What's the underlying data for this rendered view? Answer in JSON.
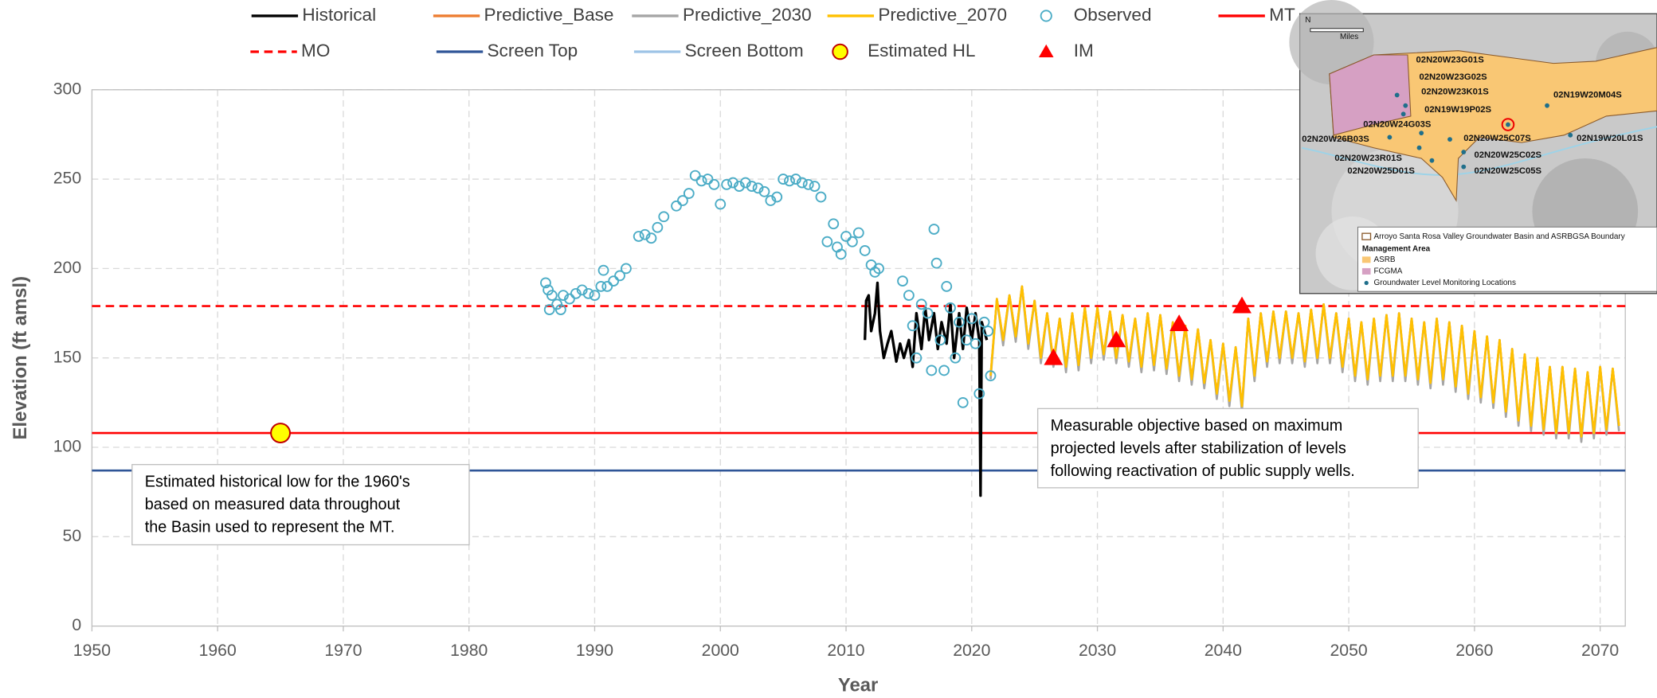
{
  "chart_data": {
    "type": "line",
    "x_label": "Year",
    "y_label": "Elevation (ft amsl)",
    "xlim": [
      1950,
      2072
    ],
    "ylim": [
      0,
      300
    ],
    "xticks": [
      1950,
      1960,
      1970,
      1980,
      1990,
      2000,
      2010,
      2020,
      2030,
      2040,
      2050,
      2060,
      2070
    ],
    "yticks": [
      0,
      50,
      100,
      150,
      200,
      250,
      300
    ],
    "grid": true,
    "series": [
      {
        "name": "Historical",
        "kind": "line",
        "color": "#000000",
        "x": [
          2011.5,
          2011.6,
          2011.8,
          2012,
          2012.3,
          2012.5,
          2012.7,
          2013,
          2013.3,
          2013.6,
          2014,
          2014.3,
          2014.6,
          2015,
          2015.3,
          2015.6,
          2016,
          2016.3,
          2016.6,
          2017,
          2017.3,
          2017.6,
          2018,
          2018.3,
          2018.6,
          2019,
          2019.3,
          2019.6,
          2020,
          2020.3,
          2020.6,
          2020.7,
          2020.8,
          2021,
          2021.2
        ],
        "values": [
          160,
          182,
          185,
          165,
          175,
          192,
          165,
          150,
          158,
          165,
          148,
          158,
          150,
          160,
          145,
          175,
          155,
          178,
          160,
          175,
          155,
          170,
          158,
          180,
          150,
          175,
          155,
          178,
          160,
          175,
          160,
          73,
          170,
          165,
          160
        ]
      },
      {
        "name": "Predictive_Base",
        "kind": "line",
        "color": "#ed7d31",
        "x": [
          2021.5,
          2022,
          2022.5,
          2023,
          2023.5,
          2024,
          2024.5,
          2025,
          2025.5,
          2026,
          2026.5,
          2027,
          2027.5,
          2028,
          2028.5,
          2029,
          2029.5,
          2030,
          2030.5,
          2031,
          2031.5,
          2032,
          2032.5,
          2033,
          2033.5,
          2034,
          2034.5,
          2035,
          2035.5,
          2036,
          2036.5,
          2037,
          2037.5,
          2038,
          2038.5,
          2039,
          2039.5,
          2040,
          2040.5,
          2041,
          2041.5,
          2042,
          2042.5,
          2043,
          2043.5,
          2044,
          2044.5,
          2045,
          2045.5,
          2046,
          2046.5,
          2047,
          2047.5,
          2048,
          2048.5,
          2049,
          2049.5,
          2050,
          2050.5,
          2051,
          2051.5,
          2052,
          2052.5,
          2053,
          2053.5,
          2054,
          2054.5,
          2055,
          2055.5,
          2056,
          2056.5,
          2057,
          2057.5,
          2058,
          2058.5,
          2059,
          2059.5,
          2060,
          2060.5,
          2061,
          2061.5,
          2062,
          2062.5,
          2063,
          2063.5,
          2064,
          2064.5,
          2065,
          2065.5,
          2066,
          2066.5,
          2067,
          2067.5,
          2068,
          2068.5,
          2069,
          2069.5,
          2070,
          2070.5,
          2071,
          2071.5
        ],
        "values": [
          140,
          183,
          160,
          185,
          162,
          190,
          158,
          182,
          150,
          175,
          148,
          172,
          145,
          175,
          146,
          178,
          150,
          178,
          152,
          176,
          150,
          174,
          148,
          172,
          145,
          175,
          146,
          174,
          144,
          170,
          140,
          168,
          138,
          166,
          136,
          160,
          130,
          158,
          126,
          156,
          123,
          172,
          140,
          175,
          148,
          176,
          150,
          176,
          150,
          175,
          148,
          177,
          150,
          180,
          150,
          175,
          145,
          172,
          140,
          170,
          138,
          172,
          140,
          174,
          140,
          175,
          140,
          172,
          138,
          170,
          136,
          172,
          138,
          170,
          134,
          168,
          130,
          165,
          128,
          162,
          125,
          160,
          120,
          155,
          115,
          152,
          112,
          150,
          110,
          145,
          108,
          145,
          108,
          144,
          106,
          142,
          108,
          145,
          110,
          144,
          112
        ]
      },
      {
        "name": "Predictive_2030",
        "kind": "line",
        "color": "#a5a5a5",
        "x": [
          2021.5,
          2022,
          2022.5,
          2023,
          2023.5,
          2024,
          2024.5,
          2025,
          2025.5,
          2026,
          2026.5,
          2027,
          2027.5,
          2028,
          2028.5,
          2029,
          2029.5,
          2030,
          2030.5,
          2031,
          2031.5,
          2032,
          2032.5,
          2033,
          2033.5,
          2034,
          2034.5,
          2035,
          2035.5,
          2036,
          2036.5,
          2037,
          2037.5,
          2038,
          2038.5,
          2039,
          2039.5,
          2040,
          2040.5,
          2041,
          2041.5,
          2042,
          2042.5,
          2043,
          2043.5,
          2044,
          2044.5,
          2045,
          2045.5,
          2046,
          2046.5,
          2047,
          2047.5,
          2048,
          2048.5,
          2049,
          2049.5,
          2050,
          2050.5,
          2051,
          2051.5,
          2052,
          2052.5,
          2053,
          2053.5,
          2054,
          2054.5,
          2055,
          2055.5,
          2056,
          2056.5,
          2057,
          2057.5,
          2058,
          2058.5,
          2059,
          2059.5,
          2060,
          2060.5,
          2061,
          2061.5,
          2062,
          2062.5,
          2063,
          2063.5,
          2064,
          2064.5,
          2065,
          2065.5,
          2066,
          2066.5,
          2067,
          2067.5,
          2068,
          2068.5,
          2069,
          2069.5,
          2070,
          2070.5,
          2071,
          2071.5
        ],
        "values": [
          138,
          183,
          157,
          185,
          159,
          190,
          155,
          182,
          147,
          175,
          145,
          172,
          142,
          175,
          143,
          178,
          147,
          178,
          149,
          176,
          147,
          174,
          145,
          172,
          142,
          175,
          143,
          174,
          141,
          170,
          137,
          168,
          135,
          166,
          133,
          160,
          127,
          158,
          123,
          156,
          120,
          172,
          137,
          175,
          145,
          176,
          147,
          176,
          147,
          175,
          145,
          177,
          147,
          180,
          147,
          175,
          142,
          172,
          137,
          170,
          135,
          172,
          137,
          174,
          137,
          175,
          137,
          172,
          135,
          170,
          133,
          172,
          135,
          170,
          131,
          168,
          127,
          165,
          125,
          162,
          122,
          160,
          117,
          155,
          112,
          152,
          109,
          150,
          107,
          145,
          105,
          145,
          105,
          144,
          103,
          142,
          105,
          145,
          107,
          144,
          109
        ]
      },
      {
        "name": "Predictive_2070",
        "kind": "line",
        "color": "#ffc000",
        "x": [
          2021.5,
          2022,
          2022.5,
          2023,
          2023.5,
          2024,
          2024.5,
          2025,
          2025.5,
          2026,
          2026.5,
          2027,
          2027.5,
          2028,
          2028.5,
          2029,
          2029.5,
          2030,
          2030.5,
          2031,
          2031.5,
          2032,
          2032.5,
          2033,
          2033.5,
          2034,
          2034.5,
          2035,
          2035.5,
          2036,
          2036.5,
          2037,
          2037.5,
          2038,
          2038.5,
          2039,
          2039.5,
          2040,
          2040.5,
          2041,
          2041.5,
          2042,
          2042.5,
          2043,
          2043.5,
          2044,
          2044.5,
          2045,
          2045.5,
          2046,
          2046.5,
          2047,
          2047.5,
          2048,
          2048.5,
          2049,
          2049.5,
          2050,
          2050.5,
          2051,
          2051.5,
          2052,
          2052.5,
          2053,
          2053.5,
          2054,
          2054.5,
          2055,
          2055.5,
          2056,
          2056.5,
          2057,
          2057.5,
          2058,
          2058.5,
          2059,
          2059.5,
          2060,
          2060.5,
          2061,
          2061.5,
          2062,
          2062.5,
          2063,
          2063.5,
          2064,
          2064.5,
          2065,
          2065.5,
          2066,
          2066.5,
          2067,
          2067.5,
          2068,
          2068.5,
          2069,
          2069.5,
          2070,
          2070.5,
          2071,
          2071.5
        ],
        "values": [
          140,
          183,
          160,
          185,
          162,
          190,
          158,
          182,
          150,
          175,
          148,
          172,
          145,
          175,
          146,
          178,
          150,
          178,
          152,
          176,
          150,
          174,
          148,
          172,
          145,
          175,
          146,
          174,
          144,
          170,
          140,
          168,
          138,
          166,
          136,
          160,
          130,
          158,
          126,
          156,
          123,
          172,
          140,
          175,
          148,
          176,
          150,
          176,
          150,
          175,
          148,
          177,
          150,
          180,
          150,
          175,
          145,
          172,
          140,
          170,
          138,
          172,
          140,
          174,
          140,
          175,
          140,
          172,
          138,
          170,
          136,
          172,
          138,
          170,
          134,
          168,
          130,
          165,
          128,
          162,
          125,
          160,
          120,
          155,
          115,
          152,
          112,
          150,
          110,
          145,
          108,
          145,
          108,
          144,
          106,
          142,
          108,
          145,
          110,
          144,
          112
        ]
      },
      {
        "name": "Observed",
        "kind": "marker",
        "marker": "ring",
        "color": "#4bacc6",
        "x": [
          1986.1,
          1986.3,
          1986.4,
          1986.6,
          1987,
          1987.3,
          1987.5,
          1988,
          1988.5,
          1989,
          1989.5,
          1990,
          1990.5,
          1990.7,
          1991,
          1991.5,
          1992,
          1992.5,
          1993.5,
          1994,
          1994.5,
          1995,
          1995.5,
          1996.5,
          1997,
          1997.5,
          1998,
          1998.5,
          1999,
          1999.5,
          2000,
          2000.5,
          2001,
          2001.5,
          2002,
          2002.5,
          2003,
          2003.5,
          2004,
          2004.5,
          2005,
          2005.5,
          2006,
          2006.5,
          2007,
          2007.5,
          2008,
          2008.5,
          2009,
          2009.3,
          2009.6,
          2010,
          2010.5,
          2011,
          2011.5,
          2012,
          2012.3,
          2012.6,
          2014.5,
          2015,
          2015.3,
          2015.6,
          2016,
          2016.5,
          2016.8,
          2017,
          2017.2,
          2017.5,
          2017.8,
          2018,
          2018.3,
          2018.7,
          2019,
          2019.3,
          2019.6,
          2020,
          2020.3,
          2020.6,
          2021,
          2021.3,
          2021.5
        ],
        "values": [
          192,
          188,
          177,
          185,
          180,
          177,
          185,
          183,
          186,
          188,
          186,
          185,
          190,
          199,
          190,
          193,
          196,
          200,
          218,
          219,
          217,
          223,
          229,
          235,
          238,
          242,
          252,
          249,
          250,
          247,
          236,
          247,
          248,
          246,
          248,
          246,
          245,
          243,
          238,
          240,
          250,
          249,
          250,
          248,
          247,
          246,
          240,
          215,
          225,
          212,
          208,
          218,
          215,
          220,
          210,
          202,
          198,
          200,
          193,
          185,
          168,
          150,
          180,
          175,
          143,
          222,
          203,
          160,
          143,
          190,
          178,
          150,
          170,
          125,
          160,
          172,
          158,
          130,
          170,
          165,
          140
        ]
      },
      {
        "name": "MT",
        "kind": "hline",
        "color": "#ff0000",
        "value": 108
      },
      {
        "name": "MO",
        "kind": "hline",
        "color": "#ff0000",
        "value": 179,
        "dash": true
      },
      {
        "name": "Screen Top",
        "kind": "hline",
        "color": "#2f5597",
        "value": 87
      },
      {
        "name": "Screen Bottom",
        "kind": "hline",
        "color": "#9dc3e6"
      },
      {
        "name": "Estimated HL",
        "kind": "marker",
        "marker": "circle",
        "color": "#ffff00",
        "x": [
          1965
        ],
        "values": [
          108
        ]
      },
      {
        "name": "IM",
        "kind": "marker",
        "marker": "triangle",
        "color": "#ff0000",
        "x": [
          2026.5,
          2031.5,
          2036.5,
          2041.5
        ],
        "values": [
          150,
          160,
          169,
          179
        ]
      }
    ],
    "annotations": [
      {
        "lines": [
          "Estimated historical low for the 1960's",
          "based on measured data throughout",
          "the Basin used to represent the MT."
        ]
      },
      {
        "lines": [
          "Measurable objective based on maximum",
          "projected levels after stabilization of levels",
          "following reactivation of public supply wells."
        ]
      }
    ]
  },
  "inset": {
    "north": "N",
    "scale_label": "Miles",
    "well_labels": [
      "02N20W23G01S",
      "02N20W23G02S",
      "02N20W23K01S",
      "02N19W19P02S",
      "02N19W20M04S",
      "02N20W24G03S",
      "02N20W26B03S",
      "02N20W25C07S",
      "02N19W20L01S",
      "02N20W23R01S",
      "02N20W25C02S",
      "02N20W25D01S",
      "02N20W25C05S"
    ],
    "legend": [
      "Arroyo Santa Rosa Valley Groundwater Basin and ASRBGSA Boundary",
      "Management Area",
      "ASRB",
      "FCGMA",
      "Groundwater Level Monitoring Locations"
    ]
  }
}
